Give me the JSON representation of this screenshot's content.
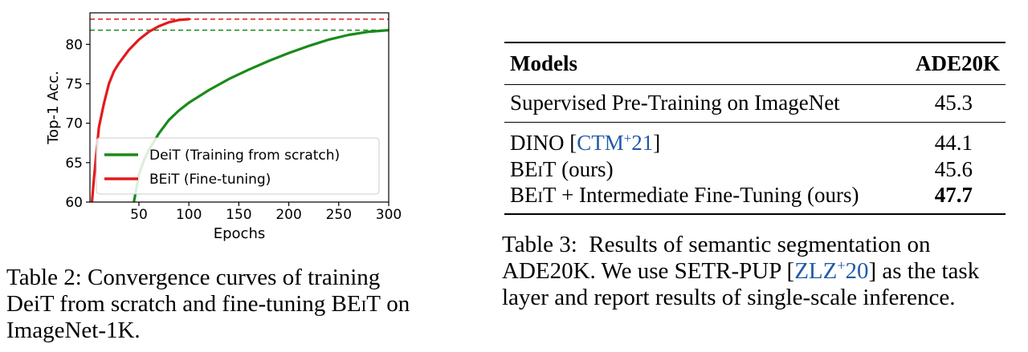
{
  "chart_data": {
    "type": "line",
    "xlabel": "Epochs",
    "ylabel": "Top-1 Acc.",
    "xlim": [
      1,
      300
    ],
    "ylim": [
      60,
      84
    ],
    "xticks": [
      50,
      100,
      150,
      200,
      250,
      300
    ],
    "yticks": [
      60,
      65,
      70,
      75,
      80
    ],
    "legend_position": "lower-right",
    "grid": false,
    "series": [
      {
        "name": "DeiT (Training from scratch)",
        "color": "#1a8a1a",
        "x": [
          45,
          50,
          55,
          60,
          70,
          80,
          90,
          100,
          120,
          140,
          160,
          180,
          200,
          220,
          240,
          260,
          280,
          300
        ],
        "y": [
          60.0,
          63.5,
          65.3,
          66.6,
          68.7,
          70.4,
          71.6,
          72.6,
          74.2,
          75.6,
          76.8,
          77.9,
          78.9,
          79.8,
          80.6,
          81.2,
          81.6,
          81.8
        ]
      },
      {
        "name": "BEiT (Fine-tuning)",
        "color": "#e41a1c",
        "x": [
          3,
          5,
          8,
          10,
          15,
          20,
          25,
          30,
          40,
          50,
          60,
          70,
          80,
          90,
          100
        ],
        "y": [
          60.0,
          63.0,
          67.0,
          69.5,
          72.5,
          75.0,
          76.6,
          77.6,
          79.3,
          80.6,
          81.6,
          82.3,
          82.8,
          83.1,
          83.2
        ]
      }
    ],
    "reference_lines": [
      {
        "y": 83.2,
        "color": "#e41a1c",
        "style": "dashed"
      },
      {
        "y": 81.8,
        "color": "#1a8a1a",
        "style": "dashed"
      }
    ]
  },
  "caption2": {
    "line1": "Table 2: Convergence curves of training",
    "line2_pre": "DeiT from scratch and fine-tuning B",
    "line2_sc": "EiT",
    "line2_post": " on",
    "line3": "ImageNet-1K."
  },
  "table3": {
    "header": {
      "models": "Models",
      "metric": "ADE20K"
    },
    "rows": [
      {
        "model": "Supervised Pre-Training on ImageNet",
        "value": "45.3"
      },
      {
        "model_pre": "DINO [",
        "cite": "CTM",
        "cite_sup": "+",
        "cite_post": "21",
        "model_post": "]",
        "value": "44.1"
      },
      {
        "model_b": "B",
        "model_sc": "EiT",
        "model_post": " (ours)",
        "value": "45.6"
      },
      {
        "model_b": "B",
        "model_sc": "EiT",
        "model_post": " + Intermediate Fine-Tuning (ours)",
        "value": "47.7"
      }
    ]
  },
  "caption3": {
    "line1": "Table 3:  Results of semantic segmentation on",
    "line2_pre": "ADE20K. We use SETR-PUP [",
    "line2_cite": "ZLZ",
    "line2_sup": "+",
    "line2_cite_post": "20",
    "line2_post": "] as the task",
    "line3": "layer and report results of single-scale inference."
  }
}
